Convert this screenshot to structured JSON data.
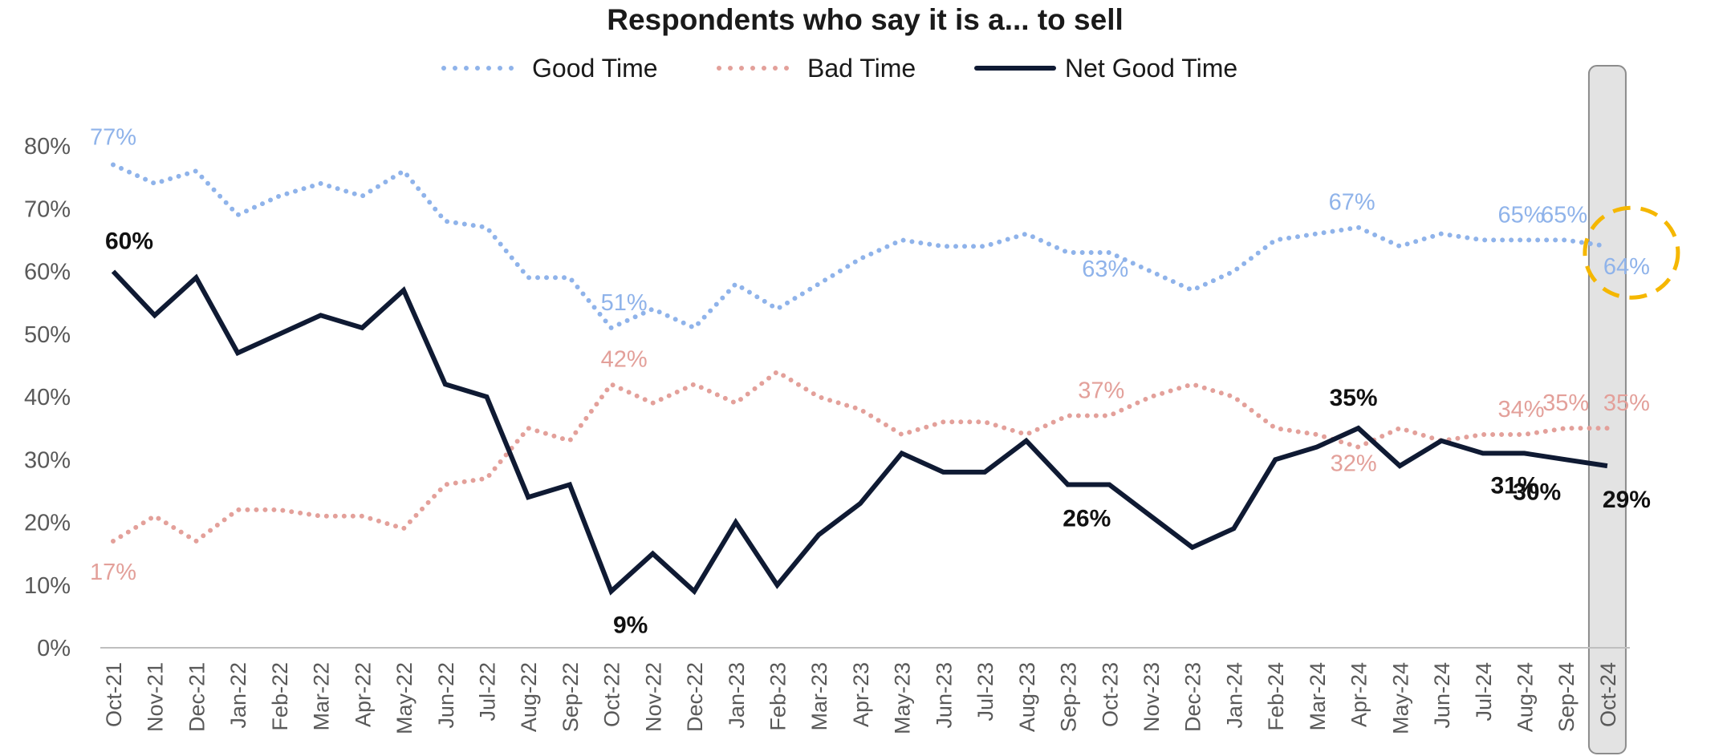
{
  "chart_data": {
    "type": "line",
    "title": "Respondents who say it is a... to sell",
    "xlabel": "",
    "ylabel": "",
    "ylim": [
      0,
      80
    ],
    "yticks": [
      "0%",
      "10%",
      "20%",
      "30%",
      "40%",
      "50%",
      "60%",
      "70%",
      "80%"
    ],
    "grid": false,
    "legend": "top",
    "categories": [
      "Oct-21",
      "Nov-21",
      "Dec-21",
      "Jan-22",
      "Feb-22",
      "Mar-22",
      "Apr-22",
      "May-22",
      "Jun-22",
      "Jul-22",
      "Aug-22",
      "Sep-22",
      "Oct-22",
      "Nov-22",
      "Dec-22",
      "Jan-23",
      "Feb-23",
      "Mar-23",
      "Apr-23",
      "May-23",
      "Jun-23",
      "Jul-23",
      "Aug-23",
      "Sep-23",
      "Oct-23",
      "Nov-23",
      "Dec-23",
      "Jan-24",
      "Feb-24",
      "Mar-24",
      "Apr-24",
      "May-24",
      "Jun-24",
      "Jul-24",
      "Aug-24",
      "Sep-24",
      "Oct-24"
    ],
    "series": [
      {
        "name": "Good Time",
        "style": "dotted",
        "color": "#8fb3ea",
        "values": [
          77,
          74,
          76,
          69,
          72,
          74,
          72,
          76,
          68,
          67,
          59,
          59,
          51,
          54,
          51,
          58,
          54,
          58,
          62,
          65,
          64,
          64,
          66,
          63,
          63,
          60,
          57,
          60,
          65,
          66,
          67,
          64,
          66,
          65,
          65,
          65,
          64
        ],
        "labels": [
          {
            "index": 0,
            "text": "77%"
          },
          {
            "index": 12,
            "text": "51%"
          },
          {
            "index": 24,
            "text": "63%"
          },
          {
            "index": 30,
            "text": "67%"
          },
          {
            "index": 34,
            "text": "65%"
          },
          {
            "index": 35,
            "text": "65%"
          },
          {
            "index": 36,
            "text": "64%"
          }
        ]
      },
      {
        "name": "Bad Time",
        "style": "dotted",
        "color": "#e3a09a",
        "values": [
          17,
          21,
          17,
          22,
          22,
          21,
          21,
          19,
          26,
          27,
          35,
          33,
          42,
          39,
          42,
          39,
          44,
          40,
          38,
          34,
          36,
          36,
          34,
          37,
          37,
          40,
          42,
          40,
          35,
          34,
          32,
          35,
          33,
          34,
          34,
          35,
          35
        ],
        "labels": [
          {
            "index": 0,
            "text": "17%"
          },
          {
            "index": 12,
            "text": "42%"
          },
          {
            "index": 24,
            "text": "37%"
          },
          {
            "index": 30,
            "text": "32%"
          },
          {
            "index": 34,
            "text": "34%"
          },
          {
            "index": 35,
            "text": "35%"
          },
          {
            "index": 36,
            "text": "35%"
          }
        ]
      },
      {
        "name": "Net Good Time",
        "style": "solid",
        "color": "#0f1a33",
        "values": [
          60,
          53,
          59,
          47,
          50,
          53,
          51,
          57,
          42,
          40,
          24,
          26,
          9,
          15,
          9,
          20,
          10,
          18,
          23,
          31,
          28,
          28,
          33,
          26,
          26,
          21,
          16,
          19,
          30,
          32,
          35,
          29,
          33,
          31,
          31,
          30,
          29
        ],
        "labels": [
          {
            "index": 0,
            "text": "60%"
          },
          {
            "index": 12,
            "text": "9%"
          },
          {
            "index": 24,
            "text": "26%"
          },
          {
            "index": 30,
            "text": "35%"
          },
          {
            "index": 34,
            "text": "31%"
          },
          {
            "index": 35,
            "text": "30%"
          },
          {
            "index": 36,
            "text": "29%"
          }
        ]
      }
    ],
    "highlight": {
      "category": "Oct-24",
      "fill": "#e3e3e3",
      "stroke": "#8c8c8c"
    },
    "callout": {
      "category": "Oct-24",
      "series": "Good Time",
      "color": "#f5b700",
      "style": "dashed-circle"
    }
  }
}
